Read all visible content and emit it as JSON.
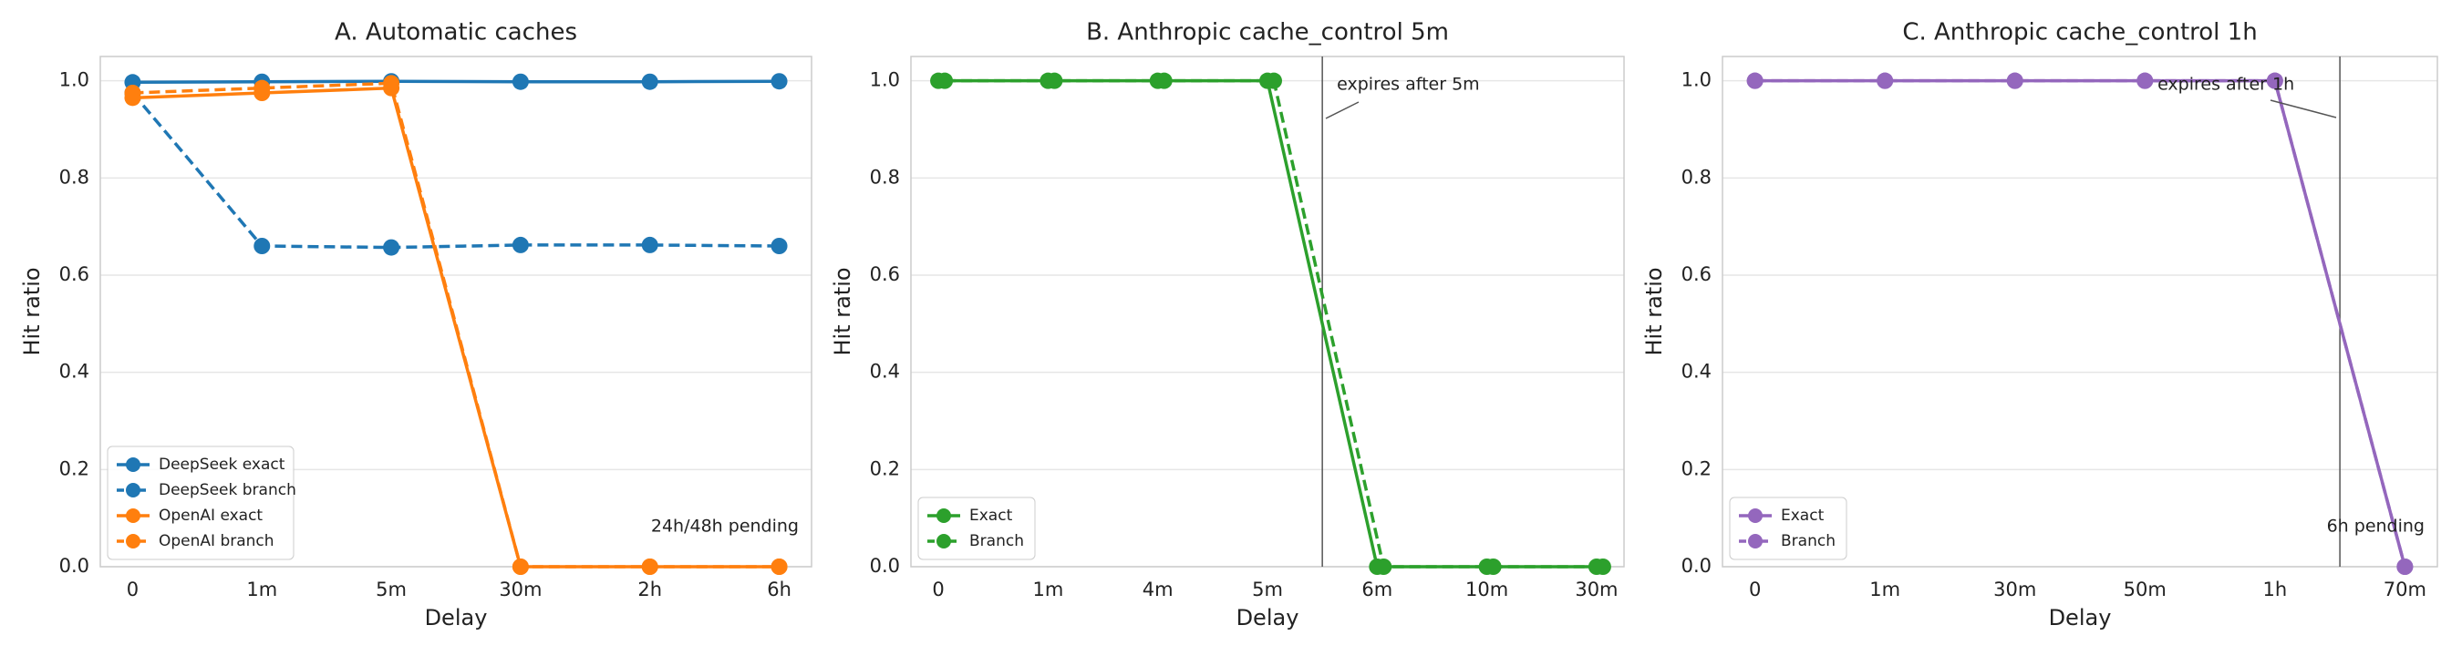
{
  "chart_data": [
    {
      "type": "line",
      "title": "A. Automatic caches",
      "xlabel": "Delay",
      "ylabel": "Hit ratio",
      "categories": [
        "0",
        "1m",
        "5m",
        "30m",
        "2h",
        "6h"
      ],
      "series": [
        {
          "name": "DeepSeek exact",
          "color": "#1f77b4",
          "linestyle": "solid",
          "values": [
            0.997,
            0.998,
            0.999,
            0.998,
            0.998,
            0.999
          ]
        },
        {
          "name": "DeepSeek branch",
          "color": "#1f77b4",
          "linestyle": "dashed",
          "values": [
            0.975,
            0.66,
            0.657,
            0.662,
            0.662,
            0.66
          ]
        },
        {
          "name": "OpenAI exact",
          "color": "#ff7f0e",
          "linestyle": "solid",
          "values": [
            0.965,
            0.975,
            0.985,
            0,
            0,
            0
          ]
        },
        {
          "name": "OpenAI branch",
          "color": "#ff7f0e",
          "linestyle": "dashed",
          "values": [
            0.975,
            0.985,
            0.995,
            0,
            0,
            0
          ]
        }
      ],
      "ylim": [
        0,
        1.05
      ],
      "yticks": [
        {
          "value": 0,
          "label": "0.0"
        },
        0.2,
        0.4,
        0.6,
        0.8,
        {
          "value": 1,
          "label": "1.0"
        }
      ],
      "grid": true,
      "legend": "lower left",
      "annotations": [
        "24h/48h pending"
      ]
    },
    {
      "type": "line",
      "title": "B. Anthropic cache_control 5m",
      "xlabel": "Delay",
      "ylabel": "Hit ratio",
      "categories": [
        "0",
        "1m",
        "4m",
        "5m",
        "6m",
        "10m",
        "30m"
      ],
      "series": [
        {
          "name": "Exact",
          "color": "#2ca02c",
          "linestyle": "solid",
          "values": [
            1,
            1,
            1,
            1,
            0,
            0,
            0
          ]
        },
        {
          "name": "Branch",
          "color": "#2ca02c",
          "linestyle": "dashed",
          "values": [
            1,
            1,
            1,
            1,
            0,
            0,
            0
          ]
        }
      ],
      "ylim": [
        0,
        1.05
      ],
      "yticks": [
        {
          "value": 0,
          "label": "0.0"
        },
        0.2,
        0.4,
        0.6,
        0.8,
        {
          "value": 1,
          "label": "1.0"
        }
      ],
      "grid": true,
      "legend": "lower left",
      "annotations": [
        "expires after 5m"
      ]
    },
    {
      "type": "line",
      "title": "C. Anthropic cache_control 1h",
      "xlabel": "Delay",
      "ylabel": "Hit ratio",
      "categories": [
        "0",
        "1m",
        "30m",
        "50m",
        "1h",
        "70m"
      ],
      "series": [
        {
          "name": "Exact",
          "color": "#9467bd",
          "linestyle": "solid",
          "values": [
            1,
            1,
            1,
            1,
            1,
            0
          ]
        },
        {
          "name": "Branch",
          "color": "#9467bd",
          "linestyle": "dashed",
          "values": [
            1,
            1,
            1,
            1,
            1,
            0
          ]
        }
      ],
      "ylim": [
        0,
        1.05
      ],
      "yticks": [
        {
          "value": 0,
          "label": "0.0"
        },
        0.2,
        0.4,
        0.6,
        0.8,
        {
          "value": 1,
          "label": "1.0"
        }
      ],
      "grid": true,
      "legend": "lower left",
      "annotations": [
        "expires after 1h",
        "6h pending"
      ]
    }
  ]
}
